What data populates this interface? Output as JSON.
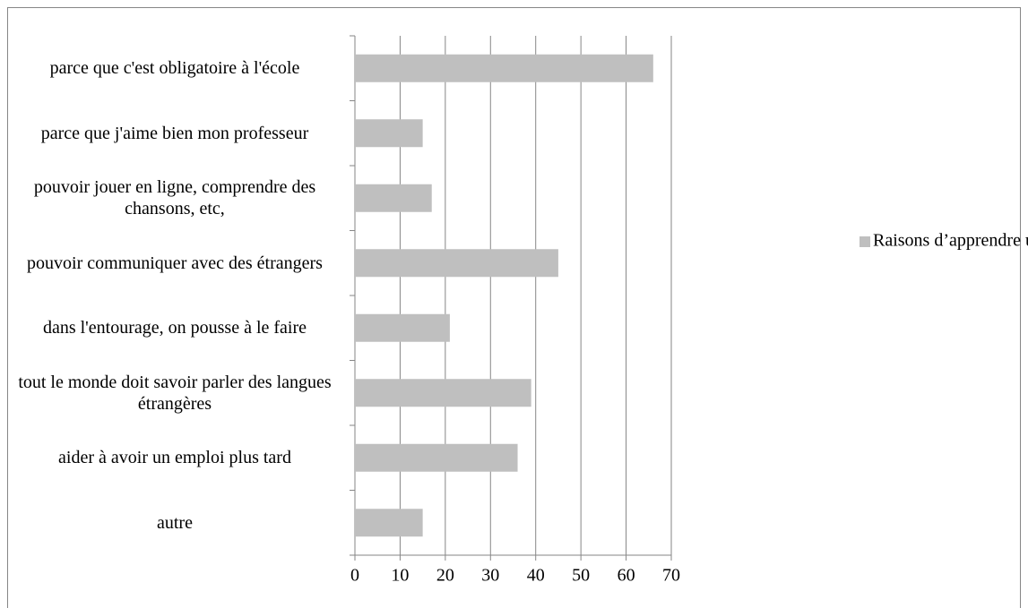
{
  "chart_data": {
    "type": "bar",
    "orientation": "horizontal",
    "categories": [
      "parce que c'est obligatoire à l'école",
      "parce que j'aime bien mon professeur",
      "pouvoir jouer en ligne, comprendre des chansons, etc,",
      "pouvoir communiquer avec des étrangers",
      "dans l'entourage, on pousse à le faire",
      "tout le monde doit savoir parler des langues étrangères",
      "aider à avoir un emploi plus tard",
      "autre"
    ],
    "series": [
      {
        "name": "Raisons d’apprendre une LE",
        "color": "#bfbfbf",
        "values": [
          66,
          15,
          17,
          45,
          21,
          39,
          36,
          15
        ]
      }
    ],
    "xlim": [
      0,
      70
    ],
    "xticks": [
      0,
      10,
      20,
      30,
      40,
      50,
      60,
      70
    ],
    "grid": true,
    "legend": "right"
  }
}
